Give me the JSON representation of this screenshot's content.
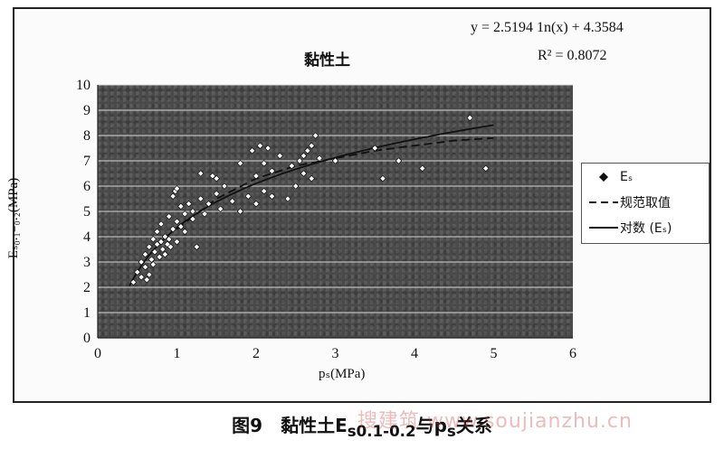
{
  "chart_data": {
    "type": "scatter",
    "title": "黏性土",
    "equation": "y = 2.5194 1n(x) + 4.3584",
    "r_squared": "R² = 0.8072",
    "xlabel": "pₛ(MPa)",
    "ylabel": "Eₛ₀.₁₋₀.₂(MPa)",
    "xlim": [
      0,
      6
    ],
    "ylim": [
      0,
      10
    ],
    "xticks": [
      "0",
      "1",
      "2",
      "3",
      "4",
      "5",
      "6"
    ],
    "yticks": [
      "0",
      "1",
      "2",
      "3",
      "4",
      "5",
      "6",
      "7",
      "8",
      "9",
      "10"
    ],
    "grid": true,
    "legend_position": "right",
    "legend": [
      "Eₛ",
      "规范取值",
      "对数 (Eₛ)"
    ],
    "series": [
      {
        "name": "Eₛ",
        "points": [
          [
            0.45,
            2.2
          ],
          [
            0.5,
            2.6
          ],
          [
            0.55,
            2.4
          ],
          [
            0.55,
            3.0
          ],
          [
            0.6,
            2.8
          ],
          [
            0.6,
            3.3
          ],
          [
            0.62,
            2.3
          ],
          [
            0.65,
            3.6
          ],
          [
            0.65,
            2.5
          ],
          [
            0.68,
            3.1
          ],
          [
            0.7,
            3.9
          ],
          [
            0.7,
            2.9
          ],
          [
            0.72,
            3.4
          ],
          [
            0.75,
            4.2
          ],
          [
            0.75,
            3.7
          ],
          [
            0.78,
            3.2
          ],
          [
            0.8,
            3.8
          ],
          [
            0.8,
            4.5
          ],
          [
            0.82,
            3.5
          ],
          [
            0.85,
            4.0
          ],
          [
            0.85,
            3.3
          ],
          [
            0.88,
            3.7
          ],
          [
            0.9,
            4.8
          ],
          [
            0.9,
            3.9
          ],
          [
            0.92,
            3.6
          ],
          [
            0.95,
            4.3
          ],
          [
            0.95,
            5.6
          ],
          [
            0.98,
            5.8
          ],
          [
            1.0,
            5.9
          ],
          [
            1.0,
            4.6
          ],
          [
            1.0,
            3.8
          ],
          [
            1.05,
            4.4
          ],
          [
            1.05,
            5.2
          ],
          [
            1.1,
            4.9
          ],
          [
            1.1,
            4.2
          ],
          [
            1.15,
            5.3
          ],
          [
            1.2,
            4.7
          ],
          [
            1.2,
            5.0
          ],
          [
            1.25,
            3.6
          ],
          [
            1.3,
            5.5
          ],
          [
            1.3,
            6.5
          ],
          [
            1.35,
            4.9
          ],
          [
            1.4,
            5.3
          ],
          [
            1.45,
            6.4
          ],
          [
            1.5,
            6.3
          ],
          [
            1.5,
            5.7
          ],
          [
            1.55,
            5.1
          ],
          [
            1.6,
            6.0
          ],
          [
            1.7,
            5.4
          ],
          [
            1.8,
            6.9
          ],
          [
            1.8,
            5.0
          ],
          [
            1.9,
            5.6
          ],
          [
            1.95,
            7.4
          ],
          [
            2.0,
            6.4
          ],
          [
            2.0,
            5.3
          ],
          [
            2.05,
            7.6
          ],
          [
            2.1,
            6.9
          ],
          [
            2.1,
            5.8
          ],
          [
            2.15,
            7.5
          ],
          [
            2.2,
            5.6
          ],
          [
            2.2,
            6.6
          ],
          [
            2.3,
            7.2
          ],
          [
            2.4,
            5.5
          ],
          [
            2.45,
            6.8
          ],
          [
            2.5,
            6.0
          ],
          [
            2.55,
            7.0
          ],
          [
            2.6,
            7.2
          ],
          [
            2.6,
            6.5
          ],
          [
            2.65,
            7.4
          ],
          [
            2.7,
            7.6
          ],
          [
            2.7,
            6.3
          ],
          [
            2.75,
            8.0
          ],
          [
            2.8,
            7.1
          ],
          [
            3.0,
            7.0
          ],
          [
            3.5,
            7.5
          ],
          [
            3.6,
            6.3
          ],
          [
            3.8,
            7.0
          ],
          [
            4.1,
            6.7
          ],
          [
            4.7,
            8.7
          ],
          [
            4.9,
            6.7
          ]
        ]
      },
      {
        "name": "规范取值",
        "points": [
          [
            1.0,
            4.3
          ],
          [
            1.5,
            5.5
          ],
          [
            2.0,
            6.3
          ],
          [
            2.5,
            6.8
          ],
          [
            3.0,
            7.1
          ],
          [
            3.5,
            7.4
          ],
          [
            4.0,
            7.6
          ],
          [
            4.5,
            7.8
          ],
          [
            5.0,
            7.9
          ]
        ]
      },
      {
        "name": "对数 (Eₛ)",
        "fit": {
          "a": 2.5194,
          "b": 4.3584,
          "x_from": 0.4,
          "x_to": 5.0
        }
      }
    ]
  },
  "caption": {
    "prefix": "图9　黏性土E",
    "sub1": "s0.1-0.2",
    "mid": "与p",
    "sub2": "s",
    "suffix": "关系"
  },
  "watermark": "搜建筑 www.soujianzhu.cn",
  "colors": {
    "plot_bg": "#4a4a4a",
    "grid": "#d8d8d8",
    "marker": "#ffffff",
    "line": "#111111"
  }
}
